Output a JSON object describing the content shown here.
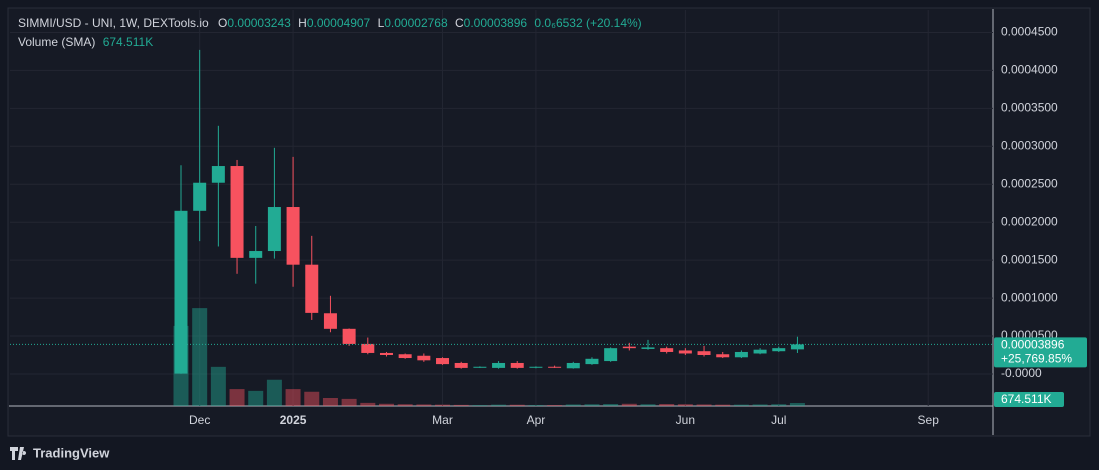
{
  "chart_data": {
    "type": "candlestick",
    "title": "SIMMI/USD - UNI, 1W, DEXTools.io",
    "ohlc_letters": [
      "O",
      "H",
      "L",
      "C"
    ],
    "change_label": "0.0₆6532 (+20.14%)",
    "volume_title": "Volume (SMA)",
    "volume_label": "674.511K",
    "percent_label": "+25,769.85%",
    "brand": "TradingView",
    "up_color": "#22ab94",
    "down_color": "#f7525f",
    "categories": [
      null,
      "Dec",
      null,
      null,
      null,
      null,
      "2025",
      null,
      null,
      null,
      null,
      null,
      null,
      null,
      "Mar",
      null,
      null,
      null,
      null,
      "Apr",
      null,
      null,
      null,
      null,
      null,
      null,
      null,
      "Jun",
      null,
      null,
      null,
      null,
      "Jul",
      null,
      null,
      null,
      null,
      null,
      null,
      null,
      "Sep",
      null,
      null,
      null
    ],
    "open": [
      5e-07,
      0.000215,
      0.000252,
      0.000274,
      0.000153,
      0.000162,
      0.00022,
      0.000144,
      8e-05,
      5.95e-05,
      3.96e-05,
      2.77e-05,
      2.6e-05,
      2.4e-05,
      2.1e-05,
      1.45e-05,
      9.2e-06,
      8e-06,
      1.45e-05,
      8.5e-06,
      9.5e-06,
      7.5e-06,
      1.3e-05,
      1.7e-05,
      3.6e-05,
      3.3e-05,
      3.4e-05,
      3.1e-05,
      3e-05,
      2.6e-05,
      2.2e-05,
      2.7e-05,
      3e-05,
      3.243e-05,
      null,
      null,
      null,
      null,
      null,
      null,
      null,
      null,
      null,
      null
    ],
    "high": [
      0.000275,
      0.000427,
      0.000327,
      0.000282,
      0.000195,
      0.000298,
      0.000286,
      0.000182,
      0.000103,
      6e-05,
      4.8e-05,
      2.9e-05,
      2.7e-05,
      2.7e-05,
      2.2e-05,
      1.6e-05,
      1e-05,
      1.7e-05,
      1.7e-05,
      1e-05,
      1.1e-05,
      1.6e-05,
      2.2e-05,
      3.5e-05,
      4.1e-05,
      4.5e-05,
      3.6e-05,
      3.4e-05,
      3.7e-05,
      2.9e-05,
      3.1e-05,
      3.4e-05,
      3.6e-05,
      4.907e-05,
      null,
      null,
      null,
      null,
      null,
      null,
      null,
      null,
      null,
      null
    ],
    "low": [
      3e-07,
      0.000175,
      0.000168,
      0.000132,
      0.000119,
      0.000152,
      0.000115,
      7.12e-05,
      5.5e-05,
      3.7e-05,
      2.6e-05,
      2.3e-05,
      2e-05,
      1.6e-05,
      1.2e-05,
      7e-06,
      8e-06,
      7e-06,
      7e-06,
      7.5e-06,
      8e-06,
      7e-06,
      1.2e-05,
      1.6e-05,
      3.1e-05,
      3.2e-05,
      2.7e-05,
      2.5e-05,
      2.3e-05,
      2.1e-05,
      2.1e-05,
      2.6e-05,
      2.9e-05,
      2.768e-05,
      null,
      null,
      null,
      null,
      null,
      null,
      null,
      null,
      null,
      null
    ],
    "close": [
      0.000215,
      0.000252,
      0.000274,
      0.000153,
      0.000162,
      0.00022,
      0.000144,
      8.05e-05,
      5.95e-05,
      3.96e-05,
      2.77e-05,
      2.5e-05,
      2.1e-05,
      1.8e-05,
      1.3e-05,
      8e-06,
      9.5e-06,
      1.45e-05,
      8e-06,
      9.5e-06,
      8.5e-06,
      1.45e-05,
      2e-05,
      3.4e-05,
      3.4e-05,
      3.5e-05,
      2.9e-05,
      2.7e-05,
      2.5e-05,
      2.2e-05,
      2.9e-05,
      3.2e-05,
      3.4e-05,
      3.896e-05,
      null,
      null,
      null,
      null,
      null,
      null,
      null,
      null,
      null,
      null
    ],
    "volume": [
      18000000,
      22000000,
      8800000,
      3800000,
      3400000,
      5900000,
      3800000,
      3200000,
      1800000,
      1600000,
      700000,
      500000,
      400000,
      350000,
      300000,
      250000,
      200000,
      300000,
      280000,
      200000,
      200000,
      350000,
      400000,
      450000,
      500000,
      400000,
      450000,
      400000,
      350000,
      300000,
      300000,
      350000,
      400000,
      674511,
      null,
      null,
      null,
      null,
      null,
      null,
      null,
      null,
      null,
      null
    ],
    "ylim": [
      -4.22e-05,
      0.0004796
    ],
    "y2lim": [
      0,
      89000000
    ],
    "yticks": [
      {
        "value": 0,
        "label": "-0.0000"
      },
      {
        "value": 5e-05,
        "label": "0.0000500"
      },
      {
        "value": 0.0001,
        "label": "0.0001000"
      },
      {
        "value": 0.00015,
        "label": "0.0001500"
      },
      {
        "value": 0.0002,
        "label": "0.0002000"
      },
      {
        "value": 0.00025,
        "label": "0.0002500"
      },
      {
        "value": 0.0003,
        "label": "0.0003000"
      },
      {
        "value": 0.00035,
        "label": "0.0003500"
      },
      {
        "value": 0.0004,
        "label": "0.0004000"
      },
      {
        "value": 0.00045,
        "label": "0.0004500"
      }
    ],
    "grid": true
  }
}
